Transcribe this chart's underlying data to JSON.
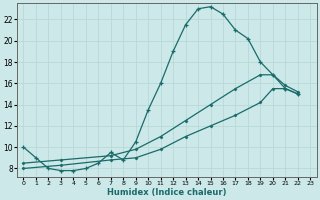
{
  "xlabel": "Humidex (Indice chaleur)",
  "bg_color": "#cce8e8",
  "line_color": "#1a6b6b",
  "grid_color": "#b8d8d8",
  "x_ticks": [
    0,
    1,
    2,
    3,
    4,
    5,
    6,
    7,
    8,
    9,
    10,
    11,
    12,
    13,
    14,
    15,
    16,
    17,
    18,
    19,
    20,
    21,
    22,
    23
  ],
  "y_ticks": [
    8,
    10,
    12,
    14,
    16,
    18,
    20,
    22
  ],
  "ylim": [
    7.2,
    23.5
  ],
  "xlim": [
    -0.5,
    23.5
  ],
  "line1_x": [
    0,
    1,
    2,
    3,
    4,
    5,
    6,
    7,
    8,
    9,
    10,
    11,
    12,
    13,
    14,
    15,
    16,
    17,
    18,
    19,
    20,
    21,
    22
  ],
  "line1_y": [
    10,
    9,
    8,
    7.8,
    7.8,
    8.0,
    8.5,
    9.5,
    8.8,
    10.5,
    13.5,
    16,
    19,
    21.5,
    23,
    23.2,
    22.5,
    21,
    20.2,
    18,
    16.8,
    15.5,
    15
  ],
  "line2_x": [
    0,
    3,
    7,
    9,
    11,
    13,
    15,
    17,
    19,
    20,
    21,
    22
  ],
  "line2_y": [
    8,
    8.3,
    8.8,
    9.0,
    9.8,
    11.0,
    12.0,
    13.0,
    14.2,
    15.5,
    15.5,
    15.0
  ],
  "line3_x": [
    0,
    3,
    7,
    9,
    11,
    13,
    15,
    17,
    19,
    20,
    21,
    22
  ],
  "line3_y": [
    8.5,
    8.8,
    9.2,
    9.8,
    11.0,
    12.5,
    14.0,
    15.5,
    16.8,
    16.8,
    15.8,
    15.2
  ]
}
